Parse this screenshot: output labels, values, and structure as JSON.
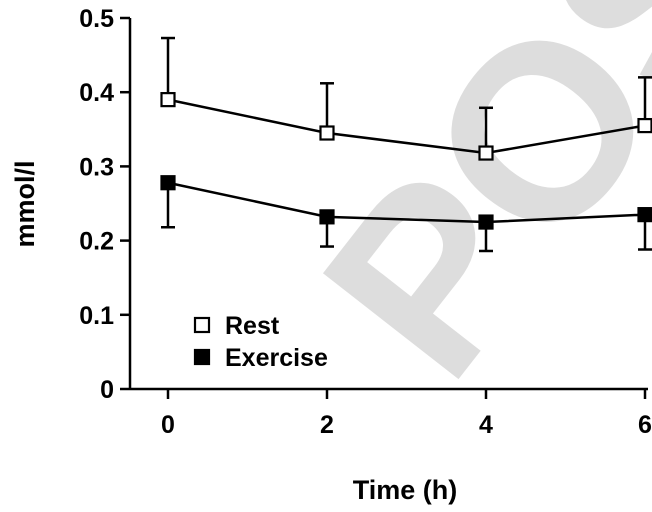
{
  "watermark": {
    "text": "POST-PR",
    "color": "#d2d2d2"
  },
  "chart_data": {
    "type": "line",
    "x": [
      0,
      2,
      4,
      6
    ],
    "series": [
      {
        "name": "Rest",
        "marker": "open-square",
        "color": "#000000",
        "values": [
          0.39,
          0.345,
          0.318,
          0.355
        ],
        "error_upper": [
          0.473,
          0.412,
          0.379,
          0.42
        ]
      },
      {
        "name": "Exercise",
        "marker": "filled-square",
        "color": "#000000",
        "values": [
          0.278,
          0.232,
          0.225,
          0.235
        ],
        "error_lower": [
          0.218,
          0.192,
          0.186,
          0.188
        ]
      }
    ],
    "xlabel": "Time (h)",
    "ylabel": "mmol/l",
    "xlim": [
      0,
      6
    ],
    "ylim": [
      0,
      0.5
    ],
    "xticks": [
      "0",
      "2",
      "4",
      "6"
    ],
    "yticks": [
      "0",
      "0.1",
      "0.2",
      "0.3",
      "0.4",
      "0.5"
    ],
    "grid": false,
    "legend": "bottom-left"
  }
}
